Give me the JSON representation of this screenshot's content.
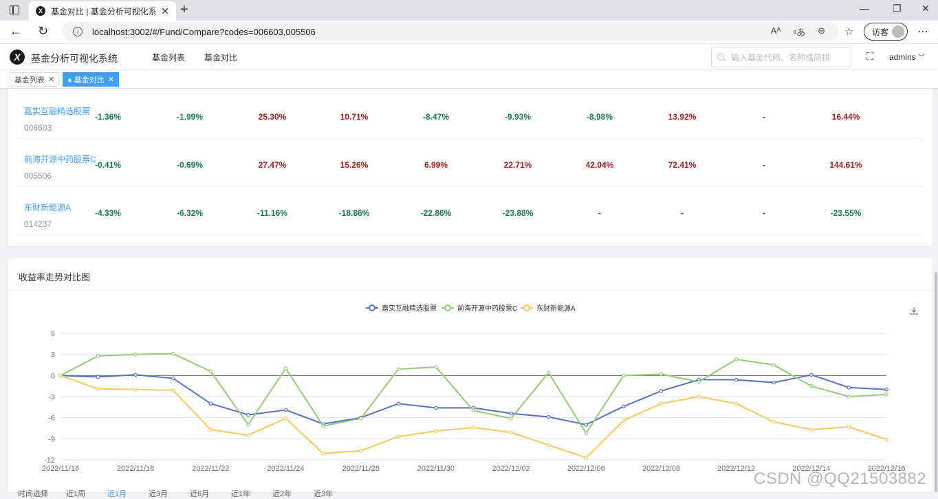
{
  "browser": {
    "tab_title": "基金对比 | 基金分析可视化系统",
    "url": "localhost:3002/#/Fund/Compare?codes=006603,005506",
    "guest_label": "访客"
  },
  "header": {
    "app_title": "基金分析可视化系统",
    "menu": [
      "基金列表",
      "基金对比"
    ],
    "search_placeholder": "输入基金代码、名称或简拼",
    "user": "admins"
  },
  "tags": [
    {
      "label": "基金列表",
      "active": false
    },
    {
      "label": "● 基金对比",
      "active": true
    }
  ],
  "funds": [
    {
      "name": "嘉实互融精选股票",
      "code": "006603",
      "values": [
        "-1.36%",
        "-1.99%",
        "25.30%",
        "10.71%",
        "-8.47%",
        "-9.93%",
        "-8.98%",
        "13.92%",
        "-",
        "16.44%"
      ]
    },
    {
      "name": "前海开源中药股票C",
      "code": "005506",
      "values": [
        "-0.41%",
        "-0.69%",
        "27.47%",
        "15.26%",
        "6.99%",
        "22.71%",
        "42.04%",
        "72.41%",
        "-",
        "144.61%"
      ]
    },
    {
      "name": "东财新能源A",
      "code": "014237",
      "values": [
        "-4.33%",
        "-6.32%",
        "-11.16%",
        "-18.86%",
        "-22.86%",
        "-23.88%",
        "-",
        "-",
        "-",
        "-23.55%"
      ]
    }
  ],
  "trend_card": {
    "title": "收益率走势对比图"
  },
  "chart_data": {
    "type": "line",
    "title": "",
    "x": [
      "2022/11/16",
      "2022/11/17",
      "2022/11/18",
      "2022/11/21",
      "2022/11/22",
      "2022/11/23",
      "2022/11/24",
      "2022/11/25",
      "2022/11/28",
      "2022/11/29",
      "2022/11/30",
      "2022/12/01",
      "2022/12/02",
      "2022/12/05",
      "2022/12/06",
      "2022/12/07",
      "2022/12/08",
      "2022/12/09",
      "2022/12/12",
      "2022/12/13",
      "2022/12/14",
      "2022/12/15",
      "2022/12/16"
    ],
    "x_tick_labels": [
      "2022/11/16",
      "2022/11/18",
      "2022/11/22",
      "2022/11/24",
      "2022/11/28",
      "2022/11/30",
      "2022/12/02",
      "2022/12/06",
      "2022/12/08",
      "2022/12/12",
      "2022/12/14",
      "2022/12/16"
    ],
    "y_ticks": [
      6,
      3,
      0,
      -3,
      -6,
      -9,
      -12
    ],
    "ylim": [
      -12,
      6
    ],
    "legend_position": "top-center",
    "grid": true,
    "series": [
      {
        "name": "嘉实互融精选股票",
        "color": "#5470c6",
        "values": [
          0,
          -0.2,
          0.1,
          -0.4,
          -4.0,
          -5.6,
          -4.9,
          -6.9,
          -6.0,
          -4.0,
          -4.6,
          -4.6,
          -5.4,
          -5.9,
          -7.0,
          -4.4,
          -2.2,
          -0.6,
          -0.6,
          -1.0,
          0.1,
          -1.7,
          -2.0
        ]
      },
      {
        "name": "前海开源中药股票C",
        "color": "#91cc75",
        "values": [
          0,
          2.8,
          3.0,
          3.1,
          0.6,
          -7.0,
          1.0,
          -7.2,
          -6.1,
          0.9,
          1.2,
          -5.0,
          -6.1,
          0.4,
          -8.2,
          0.0,
          0.2,
          -0.9,
          2.3,
          1.5,
          -1.5,
          -3.0,
          -2.7
        ]
      },
      {
        "name": "东财新能源A",
        "color": "#fac858",
        "values": [
          0,
          -1.9,
          -2.0,
          -2.1,
          -7.7,
          -8.5,
          -6.1,
          -11.1,
          -10.7,
          -8.7,
          -7.9,
          -7.4,
          -8.1,
          -9.9,
          -11.7,
          -6.4,
          -4.0,
          -3.0,
          -4.0,
          -6.6,
          -7.7,
          -7.3,
          -9.1
        ]
      }
    ]
  },
  "bottom_tabs": [
    "时间选择",
    "近1周",
    "近1月",
    "近3月",
    "近6月",
    "近1年",
    "近2年",
    "近3年"
  ],
  "watermark": "CSDN @QQ21503882"
}
